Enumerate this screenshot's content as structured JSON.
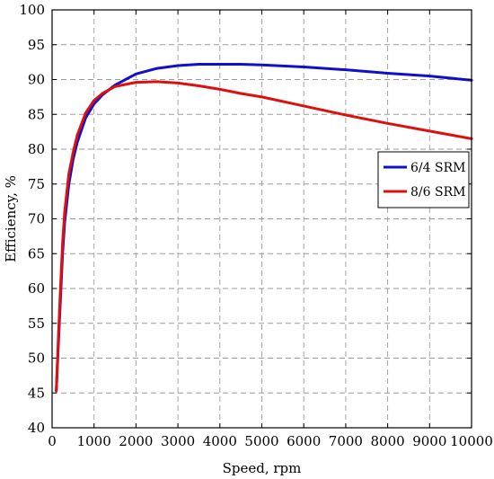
{
  "chart_data": {
    "type": "line",
    "title": "",
    "xlabel": "Speed, rpm",
    "ylabel": "Efficiency, %",
    "xlim": [
      0,
      10000
    ],
    "ylim": [
      40,
      100
    ],
    "xticks": [
      0,
      1000,
      2000,
      3000,
      4000,
      5000,
      6000,
      7000,
      8000,
      9000,
      10000
    ],
    "yticks": [
      40,
      45,
      50,
      55,
      60,
      65,
      70,
      75,
      80,
      85,
      90,
      95,
      100
    ],
    "xtick_labels": [
      "0",
      "1000",
      "2000",
      "3000",
      "4000",
      "5000",
      "6000",
      "7000",
      "8000",
      "9000",
      "10000"
    ],
    "ytick_labels": [
      "40",
      "45",
      "50",
      "55",
      "60",
      "65",
      "70",
      "75",
      "80",
      "85",
      "90",
      "95",
      "100"
    ],
    "grid": true,
    "legend_position": "middle-right",
    "series": [
      {
        "name": "6/4 SRM",
        "color": "#1010cc",
        "x": [
          100,
          150,
          200,
          250,
          300,
          400,
          500,
          600,
          800,
          1000,
          1200,
          1500,
          2000,
          2500,
          3000,
          3500,
          4000,
          4500,
          5000,
          6000,
          7000,
          8000,
          9000,
          10000
        ],
        "y": [
          45.3,
          52,
          58.5,
          65,
          69.5,
          75,
          78.5,
          81,
          84.5,
          86.5,
          87.8,
          89.2,
          90.8,
          91.6,
          92.0,
          92.2,
          92.2,
          92.2,
          92.1,
          91.8,
          91.4,
          90.9,
          90.5,
          89.9
        ]
      },
      {
        "name": "8/6 SRM",
        "color": "#dd1010",
        "x": [
          100,
          150,
          200,
          250,
          300,
          400,
          500,
          600,
          800,
          1000,
          1200,
          1500,
          2000,
          2500,
          3000,
          3500,
          4000,
          4500,
          5000,
          6000,
          7000,
          8000,
          9000,
          10000
        ],
        "y": [
          45.3,
          53,
          60,
          66.5,
          71,
          76.5,
          79.5,
          82,
          85.2,
          87.0,
          88.0,
          89.0,
          89.6,
          89.7,
          89.5,
          89.1,
          88.6,
          88.0,
          87.5,
          86.2,
          84.9,
          83.7,
          82.6,
          81.5
        ]
      }
    ]
  }
}
